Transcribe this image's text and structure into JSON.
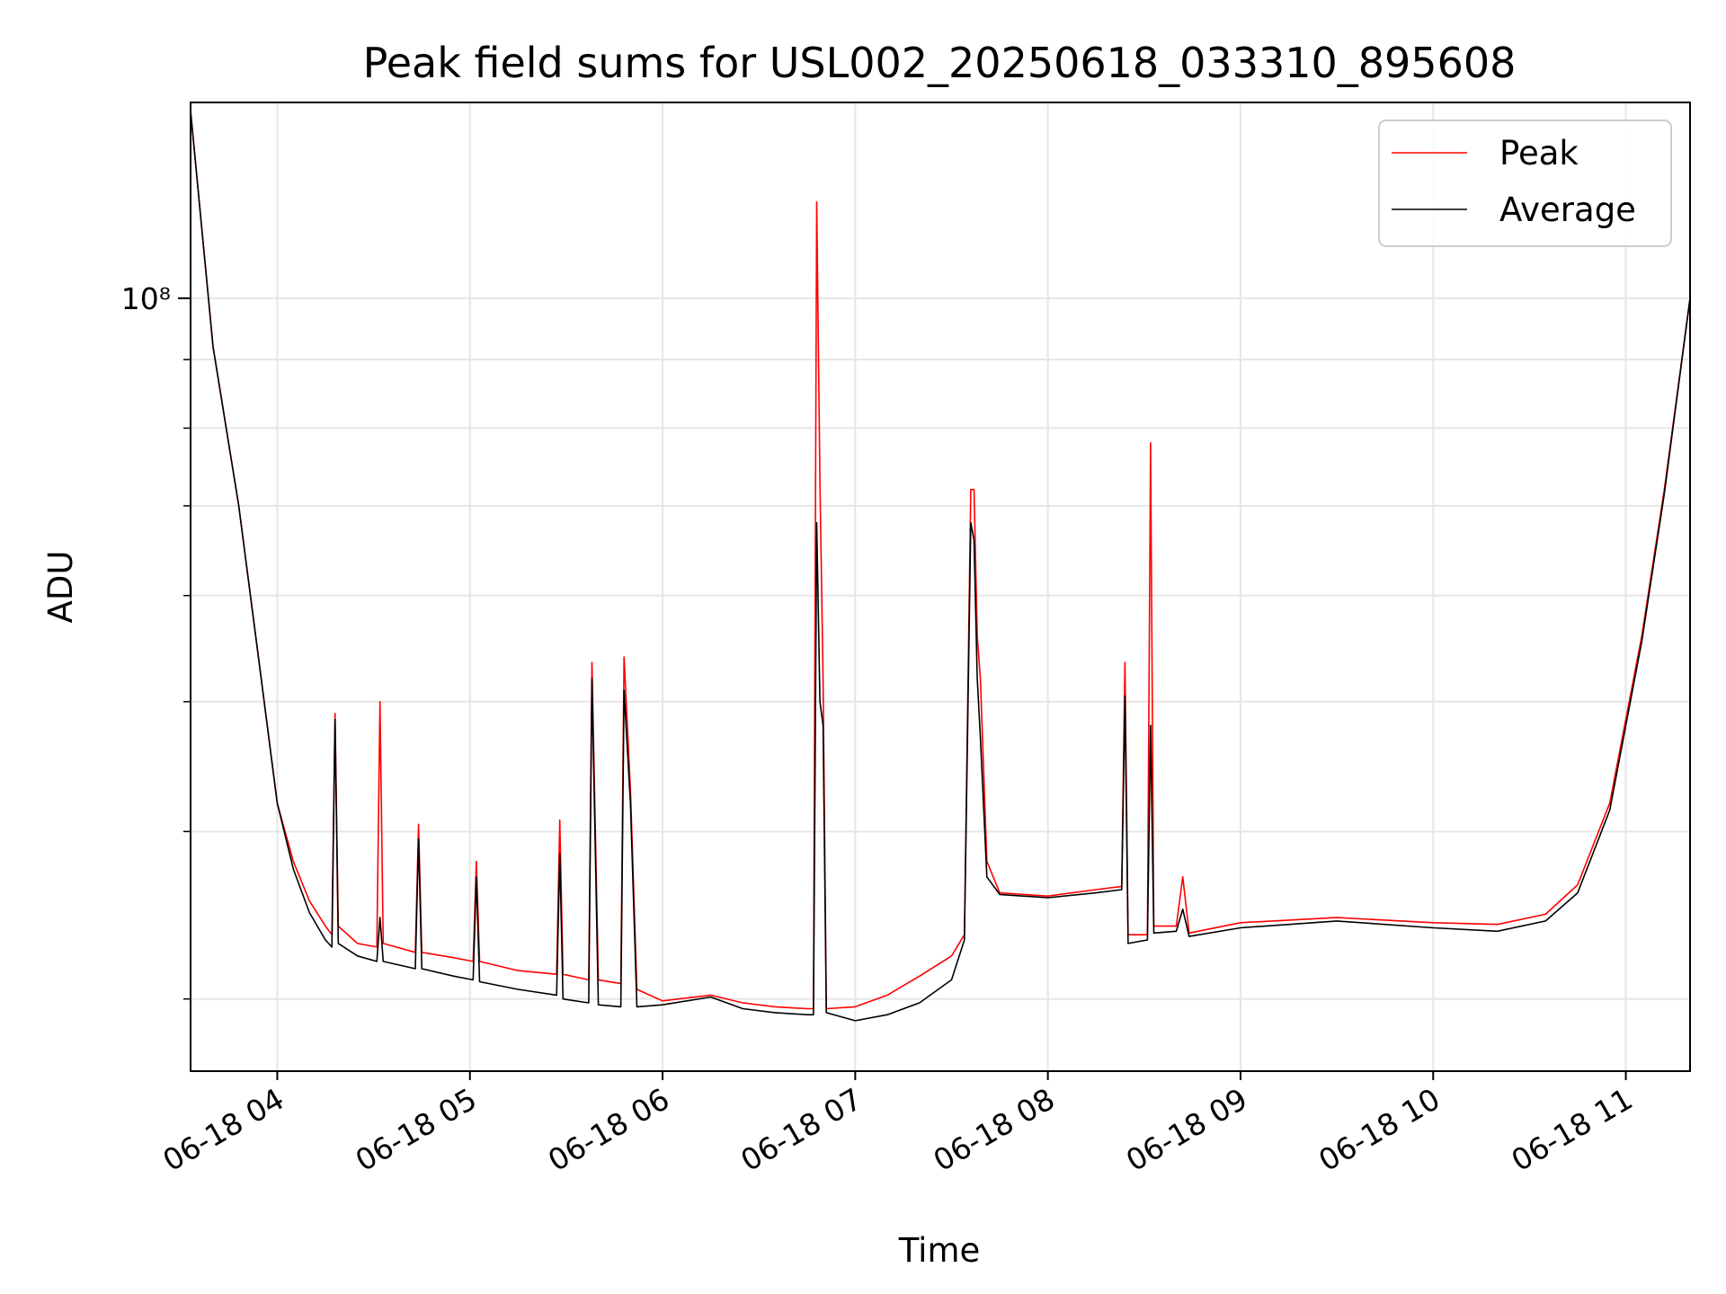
{
  "chart_data": {
    "type": "line",
    "title": "Peak field sums for USL002_20250618_033310_895608",
    "xlabel": "Time",
    "ylabel": "ADU",
    "y_scale": "log",
    "ylim": [
      26500000,
      140000000
    ],
    "xlim": [
      "2025-06-18T03:33",
      "2025-06-18T11:20"
    ],
    "x_tick_labels": [
      "06-18 04",
      "06-18 05",
      "06-18 06",
      "06-18 07",
      "06-18 08",
      "06-18 09",
      "06-18 10",
      "06-18 11"
    ],
    "x_ticks": [
      "2025-06-18T04:00",
      "2025-06-18T05:00",
      "2025-06-18T06:00",
      "2025-06-18T07:00",
      "2025-06-18T08:00",
      "2025-06-18T09:00",
      "2025-06-18T10:00",
      "2025-06-18T11:00"
    ],
    "y_major_tick_labels": [
      "10⁸"
    ],
    "y_major_ticks": [
      100000000
    ],
    "grid": true,
    "legend_position": "top-right",
    "series": [
      {
        "name": "Peak",
        "color": "#ff0000",
        "points": [
          [
            "2025-06-18T03:33",
            138000000
          ],
          [
            "2025-06-18T03:40",
            92000000
          ],
          [
            "2025-06-18T03:48",
            70000000
          ],
          [
            "2025-06-18T03:55",
            52000000
          ],
          [
            "2025-06-18T04:00",
            42000000
          ],
          [
            "2025-06-18T04:05",
            38000000
          ],
          [
            "2025-06-18T04:10",
            35500000
          ],
          [
            "2025-06-18T04:15",
            34000000
          ],
          [
            "2025-06-18T04:17",
            33500000
          ],
          [
            "2025-06-18T04:18",
            49000000
          ],
          [
            "2025-06-18T04:19",
            34000000
          ],
          [
            "2025-06-18T04:25",
            33000000
          ],
          [
            "2025-06-18T04:31",
            32800000
          ],
          [
            "2025-06-18T04:32",
            50000000
          ],
          [
            "2025-06-18T04:33",
            33000000
          ],
          [
            "2025-06-18T04:43",
            32500000
          ],
          [
            "2025-06-18T04:44",
            40500000
          ],
          [
            "2025-06-18T04:45",
            32500000
          ],
          [
            "2025-06-18T04:55",
            32200000
          ],
          [
            "2025-06-18T05:01",
            32000000
          ],
          [
            "2025-06-18T05:02",
            38000000
          ],
          [
            "2025-06-18T05:03",
            32000000
          ],
          [
            "2025-06-18T05:15",
            31500000
          ],
          [
            "2025-06-18T05:27",
            31300000
          ],
          [
            "2025-06-18T05:28",
            40800000
          ],
          [
            "2025-06-18T05:29",
            31300000
          ],
          [
            "2025-06-18T05:37",
            31000000
          ],
          [
            "2025-06-18T05:38",
            53500000
          ],
          [
            "2025-06-18T05:40",
            31000000
          ],
          [
            "2025-06-18T05:47",
            30800000
          ],
          [
            "2025-06-18T05:48",
            54000000
          ],
          [
            "2025-06-18T05:50",
            43000000
          ],
          [
            "2025-06-18T05:52",
            30500000
          ],
          [
            "2025-06-18T06:00",
            29900000
          ],
          [
            "2025-06-18T06:15",
            30200000
          ],
          [
            "2025-06-18T06:25",
            29800000
          ],
          [
            "2025-06-18T06:35",
            29600000
          ],
          [
            "2025-06-18T06:45",
            29500000
          ],
          [
            "2025-06-18T06:47",
            29500000
          ],
          [
            "2025-06-18T06:48",
            118000000
          ],
          [
            "2025-06-18T06:49",
            73000000
          ],
          [
            "2025-06-18T06:50",
            52000000
          ],
          [
            "2025-06-18T06:51",
            29500000
          ],
          [
            "2025-06-18T07:00",
            29600000
          ],
          [
            "2025-06-18T07:10",
            30200000
          ],
          [
            "2025-06-18T07:20",
            31200000
          ],
          [
            "2025-06-18T07:30",
            32300000
          ],
          [
            "2025-06-18T07:34",
            33500000
          ],
          [
            "2025-06-18T07:36",
            72000000
          ],
          [
            "2025-06-18T07:37",
            72000000
          ],
          [
            "2025-06-18T07:38",
            56000000
          ],
          [
            "2025-06-18T07:39",
            52000000
          ],
          [
            "2025-06-18T07:41",
            38000000
          ],
          [
            "2025-06-18T07:45",
            36000000
          ],
          [
            "2025-06-18T08:00",
            35800000
          ],
          [
            "2025-06-18T08:15",
            36200000
          ],
          [
            "2025-06-18T08:23",
            36400000
          ],
          [
            "2025-06-18T08:24",
            53500000
          ],
          [
            "2025-06-18T08:25",
            33500000
          ],
          [
            "2025-06-18T08:31",
            33500000
          ],
          [
            "2025-06-18T08:32",
            78000000
          ],
          [
            "2025-06-18T08:33",
            34000000
          ],
          [
            "2025-06-18T08:40",
            34000000
          ],
          [
            "2025-06-18T08:42",
            37000000
          ],
          [
            "2025-06-18T08:44",
            33600000
          ],
          [
            "2025-06-18T09:00",
            34200000
          ],
          [
            "2025-06-18T09:30",
            34500000
          ],
          [
            "2025-06-18T10:00",
            34200000
          ],
          [
            "2025-06-18T10:20",
            34100000
          ],
          [
            "2025-06-18T10:35",
            34700000
          ],
          [
            "2025-06-18T10:45",
            36500000
          ],
          [
            "2025-06-18T10:55",
            42000000
          ],
          [
            "2025-06-18T11:05",
            56000000
          ],
          [
            "2025-06-18T11:12",
            72000000
          ],
          [
            "2025-06-18T11:20",
            100000000
          ]
        ]
      },
      {
        "name": "Average",
        "color": "#000000",
        "points": [
          [
            "2025-06-18T03:33",
            138000000
          ],
          [
            "2025-06-18T03:40",
            92000000
          ],
          [
            "2025-06-18T03:48",
            70000000
          ],
          [
            "2025-06-18T03:55",
            52000000
          ],
          [
            "2025-06-18T04:00",
            42000000
          ],
          [
            "2025-06-18T04:05",
            37500000
          ],
          [
            "2025-06-18T04:10",
            34800000
          ],
          [
            "2025-06-18T04:15",
            33200000
          ],
          [
            "2025-06-18T04:17",
            32800000
          ],
          [
            "2025-06-18T04:18",
            48500000
          ],
          [
            "2025-06-18T04:19",
            33000000
          ],
          [
            "2025-06-18T04:25",
            32300000
          ],
          [
            "2025-06-18T04:31",
            32000000
          ],
          [
            "2025-06-18T04:32",
            34500000
          ],
          [
            "2025-06-18T04:33",
            32000000
          ],
          [
            "2025-06-18T04:43",
            31600000
          ],
          [
            "2025-06-18T04:44",
            39500000
          ],
          [
            "2025-06-18T04:45",
            31600000
          ],
          [
            "2025-06-18T04:55",
            31200000
          ],
          [
            "2025-06-18T05:01",
            31000000
          ],
          [
            "2025-06-18T05:02",
            37000000
          ],
          [
            "2025-06-18T05:03",
            30900000
          ],
          [
            "2025-06-18T05:15",
            30500000
          ],
          [
            "2025-06-18T05:27",
            30200000
          ],
          [
            "2025-06-18T05:28",
            38500000
          ],
          [
            "2025-06-18T05:29",
            30000000
          ],
          [
            "2025-06-18T05:37",
            29800000
          ],
          [
            "2025-06-18T05:38",
            52000000
          ],
          [
            "2025-06-18T05:40",
            29700000
          ],
          [
            "2025-06-18T05:47",
            29600000
          ],
          [
            "2025-06-18T05:48",
            51000000
          ],
          [
            "2025-06-18T05:50",
            42000000
          ],
          [
            "2025-06-18T05:52",
            29600000
          ],
          [
            "2025-06-18T06:00",
            29700000
          ],
          [
            "2025-06-18T06:15",
            30100000
          ],
          [
            "2025-06-18T06:25",
            29500000
          ],
          [
            "2025-06-18T06:35",
            29300000
          ],
          [
            "2025-06-18T06:45",
            29200000
          ],
          [
            "2025-06-18T06:47",
            29200000
          ],
          [
            "2025-06-18T06:48",
            68000000
          ],
          [
            "2025-06-18T06:49",
            50000000
          ],
          [
            "2025-06-18T06:50",
            48000000
          ],
          [
            "2025-06-18T06:51",
            29300000
          ],
          [
            "2025-06-18T07:00",
            28900000
          ],
          [
            "2025-06-18T07:10",
            29200000
          ],
          [
            "2025-06-18T07:20",
            29800000
          ],
          [
            "2025-06-18T07:30",
            31000000
          ],
          [
            "2025-06-18T07:34",
            33200000
          ],
          [
            "2025-06-18T07:36",
            68000000
          ],
          [
            "2025-06-18T07:37",
            66000000
          ],
          [
            "2025-06-18T07:38",
            52000000
          ],
          [
            "2025-06-18T07:39",
            47000000
          ],
          [
            "2025-06-18T07:41",
            37000000
          ],
          [
            "2025-06-18T07:45",
            35900000
          ],
          [
            "2025-06-18T08:00",
            35700000
          ],
          [
            "2025-06-18T08:15",
            36000000
          ],
          [
            "2025-06-18T08:23",
            36200000
          ],
          [
            "2025-06-18T08:24",
            50500000
          ],
          [
            "2025-06-18T08:25",
            33000000
          ],
          [
            "2025-06-18T08:31",
            33200000
          ],
          [
            "2025-06-18T08:32",
            48000000
          ],
          [
            "2025-06-18T08:33",
            33600000
          ],
          [
            "2025-06-18T08:40",
            33700000
          ],
          [
            "2025-06-18T08:42",
            35000000
          ],
          [
            "2025-06-18T08:44",
            33400000
          ],
          [
            "2025-06-18T09:00",
            33900000
          ],
          [
            "2025-06-18T09:30",
            34300000
          ],
          [
            "2025-06-18T10:00",
            33900000
          ],
          [
            "2025-06-18T10:20",
            33700000
          ],
          [
            "2025-06-18T10:35",
            34300000
          ],
          [
            "2025-06-18T10:45",
            36000000
          ],
          [
            "2025-06-18T10:55",
            41500000
          ],
          [
            "2025-06-18T11:05",
            55500000
          ],
          [
            "2025-06-18T11:12",
            71500000
          ],
          [
            "2025-06-18T11:20",
            100000000
          ]
        ]
      }
    ]
  }
}
